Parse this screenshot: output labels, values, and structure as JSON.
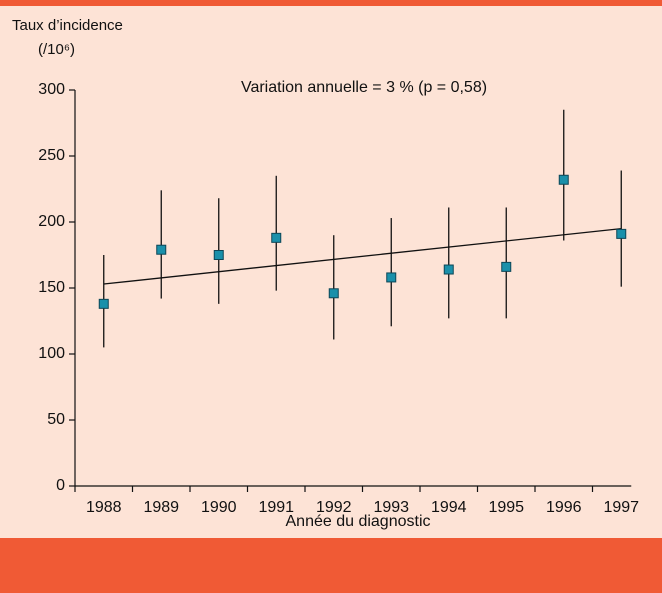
{
  "chart_data": {
    "type": "errorbar",
    "ylabel": "Taux d’incidence",
    "yunit": "(/10⁶)",
    "xlabel": "Année du diagnostic",
    "annotation": "Variation annuelle = 3 % (p = 0,58)",
    "categories": [
      "1988",
      "1989",
      "1990",
      "1991",
      "1992",
      "1993",
      "1994",
      "1995",
      "1996",
      "1997"
    ],
    "values": [
      138,
      179,
      175,
      188,
      146,
      158,
      164,
      166,
      232,
      191
    ],
    "lower": [
      105,
      142,
      138,
      148,
      111,
      121,
      127,
      127,
      186,
      151
    ],
    "upper": [
      175,
      224,
      218,
      235,
      190,
      203,
      211,
      211,
      285,
      239
    ],
    "trend": [
      153,
      195
    ],
    "color": "#1a90aa",
    "ylim": [
      0,
      300
    ],
    "yticks": [
      0,
      50,
      100,
      150,
      200,
      250,
      300
    ]
  }
}
